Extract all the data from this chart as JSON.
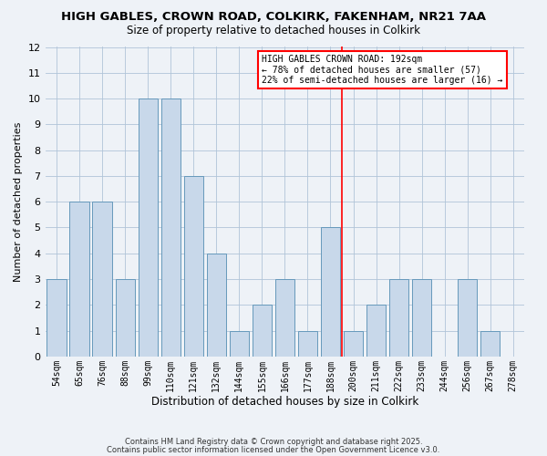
{
  "title": "HIGH GABLES, CROWN ROAD, COLKIRK, FAKENHAM, NR21 7AA",
  "subtitle": "Size of property relative to detached houses in Colkirk",
  "xlabel": "Distribution of detached houses by size in Colkirk",
  "ylabel": "Number of detached properties",
  "bar_labels": [
    "54sqm",
    "65sqm",
    "76sqm",
    "88sqm",
    "99sqm",
    "110sqm",
    "121sqm",
    "132sqm",
    "144sqm",
    "155sqm",
    "166sqm",
    "177sqm",
    "188sqm",
    "200sqm",
    "211sqm",
    "222sqm",
    "233sqm",
    "244sqm",
    "256sqm",
    "267sqm",
    "278sqm"
  ],
  "bar_values": [
    3,
    6,
    6,
    3,
    10,
    10,
    7,
    4,
    1,
    2,
    3,
    1,
    5,
    1,
    2,
    3,
    3,
    0,
    3,
    1,
    0
  ],
  "bar_color": "#c8d8ea",
  "bar_edge_color": "#6699bb",
  "ylim": [
    0,
    12
  ],
  "yticks": [
    0,
    1,
    2,
    3,
    4,
    5,
    6,
    7,
    8,
    9,
    10,
    11,
    12
  ],
  "red_line_index": 12.5,
  "annotation_title": "HIGH GABLES CROWN ROAD: 192sqm",
  "annotation_line1": "← 78% of detached houses are smaller (57)",
  "annotation_line2": "22% of semi-detached houses are larger (16) →",
  "footnote1": "Contains HM Land Registry data © Crown copyright and database right 2025.",
  "footnote2": "Contains public sector information licensed under the Open Government Licence v3.0.",
  "background_color": "#eef2f7",
  "grid_color": "#b0c4d8"
}
